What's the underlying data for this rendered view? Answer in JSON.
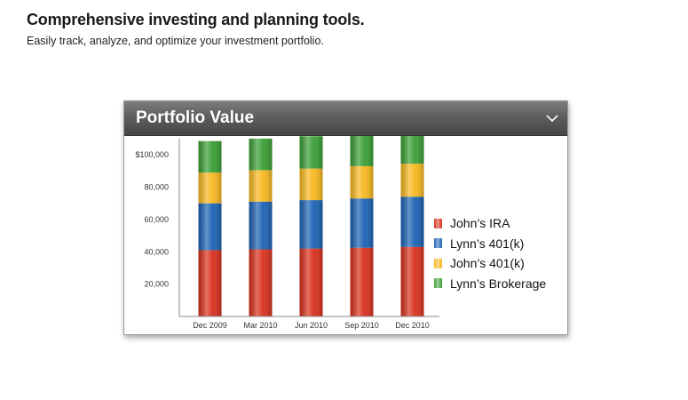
{
  "page": {
    "headline": "Comprehensive investing and planning tools.",
    "subline": "Easily track, analyze, and optimize your investment portfolio."
  },
  "widget": {
    "title": "Portfolio Value",
    "dropdown_icon": "chevron-down-icon"
  },
  "chart_data": {
    "type": "bar",
    "stacked": true,
    "categories": [
      "Dec 2009",
      "Mar 2010",
      "Jun 2010",
      "Sep 2010",
      "Dec 2010"
    ],
    "series": [
      {
        "name": "John’s IRA",
        "color": "#d9301c",
        "values": [
          41000,
          41500,
          42000,
          42500,
          43000
        ]
      },
      {
        "name": "Lynn’s 401(k)",
        "color": "#1c62b4",
        "values": [
          29000,
          29500,
          30000,
          30500,
          31000
        ]
      },
      {
        "name": "John’s 401(k)",
        "color": "#f7b81e",
        "values": [
          19000,
          19500,
          19500,
          20000,
          20500
        ]
      },
      {
        "name": "Lynn’s Brokerage",
        "color": "#3a9e34",
        "values": [
          19500,
          19500,
          20000,
          20000,
          21000
        ]
      }
    ],
    "yticks": [
      {
        "value": 20000,
        "label": "20,000"
      },
      {
        "value": 40000,
        "label": "40,000"
      },
      {
        "value": 60000,
        "label": "60,000"
      },
      {
        "value": 80000,
        "label": "80,000"
      },
      {
        "value": 100000,
        "label": "$100,000"
      }
    ],
    "ylim": [
      0,
      110000
    ],
    "grid": false,
    "legend_position": "right"
  }
}
